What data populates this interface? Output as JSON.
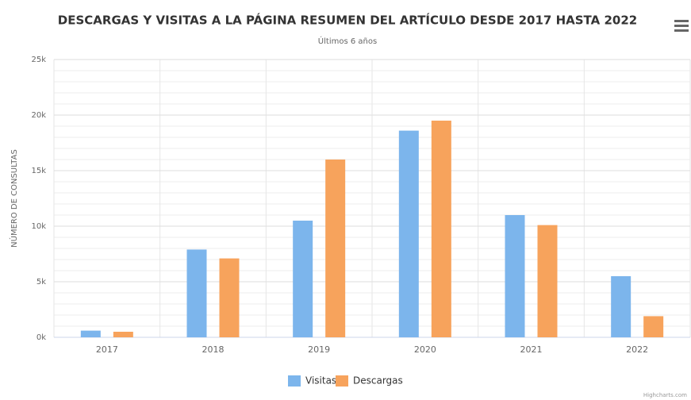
{
  "chart_data": {
    "type": "bar",
    "title": "DESCARGAS Y VISITAS A LA PÁGINA RESUMEN DEL ARTÍCULO DESDE 2017 HASTA 2022",
    "subtitle": "Últimos 6 años",
    "y_label": "NÚMERO DE CONSULTAS",
    "categories": [
      "2017",
      "2018",
      "2019",
      "2020",
      "2021",
      "2022"
    ],
    "series": [
      {
        "name": "Visitas",
        "color": "#7cb5ec",
        "values": [
          600,
          7900,
          10500,
          18600,
          11000,
          5500
        ]
      },
      {
        "name": "Descargas",
        "color": "#f7a35c",
        "values": [
          500,
          7100,
          16000,
          19500,
          10100,
          1900
        ]
      }
    ],
    "ylim": [
      0,
      25000
    ],
    "yticks": [
      {
        "value": 0,
        "label": "0k"
      },
      {
        "value": 5000,
        "label": "5k"
      },
      {
        "value": 10000,
        "label": "10k"
      },
      {
        "value": 15000,
        "label": "15k"
      },
      {
        "value": 20000,
        "label": "20k"
      },
      {
        "value": 25000,
        "label": "25k"
      }
    ],
    "grid": true,
    "legend": "bottom",
    "credits": "Highcharts.com"
  }
}
